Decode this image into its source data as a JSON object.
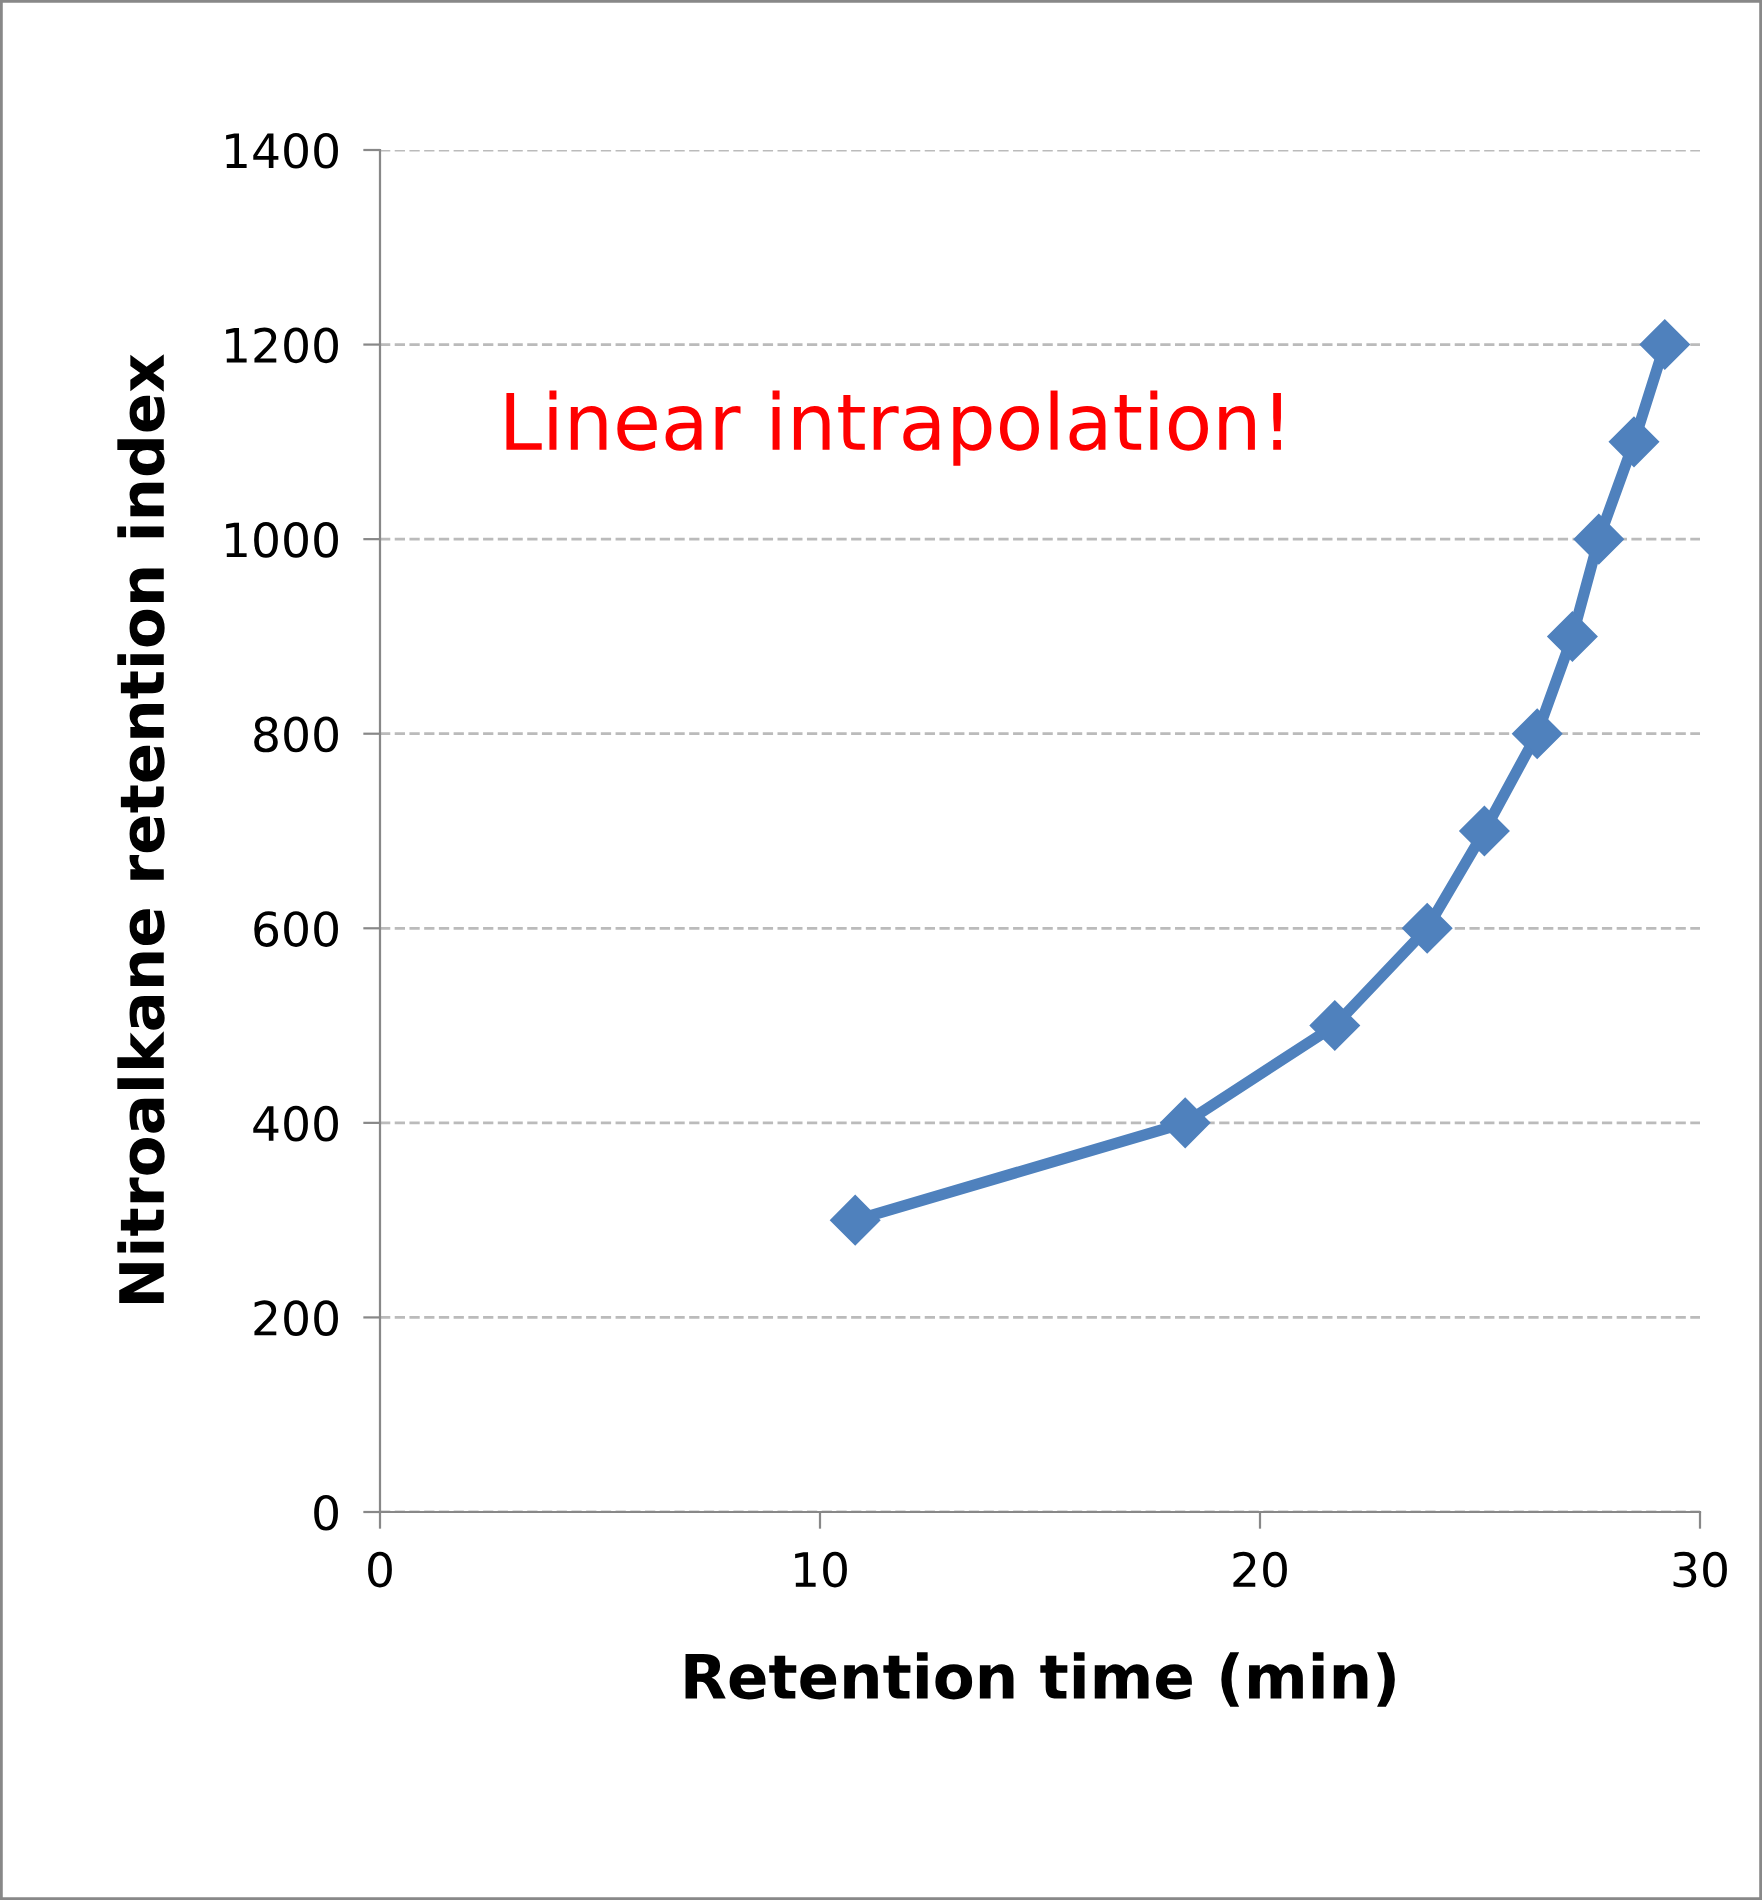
{
  "chart_data": {
    "type": "line",
    "xlabel": "Retention time (min)",
    "ylabel": "Nitroalkane retention index",
    "annotations": [
      "Linear intrapolation!"
    ],
    "x": [
      10.8,
      18.3,
      21.7,
      23.8,
      25.1,
      26.3,
      27.1,
      27.7,
      28.5,
      29.2
    ],
    "series": [
      {
        "color": "#4f81bd",
        "values": [
          300,
          400,
          500,
          600,
          700,
          800,
          900,
          1000,
          1100,
          1200
        ]
      }
    ],
    "xlim": [
      0,
      30
    ],
    "xticks": [
      0,
      10,
      20,
      30
    ],
    "ylim": [
      0,
      1400
    ],
    "yticks": [
      0,
      200,
      400,
      600,
      800,
      1000,
      1200,
      1400
    ],
    "grid": "y",
    "marker": "diamond",
    "line_style": "solid"
  }
}
